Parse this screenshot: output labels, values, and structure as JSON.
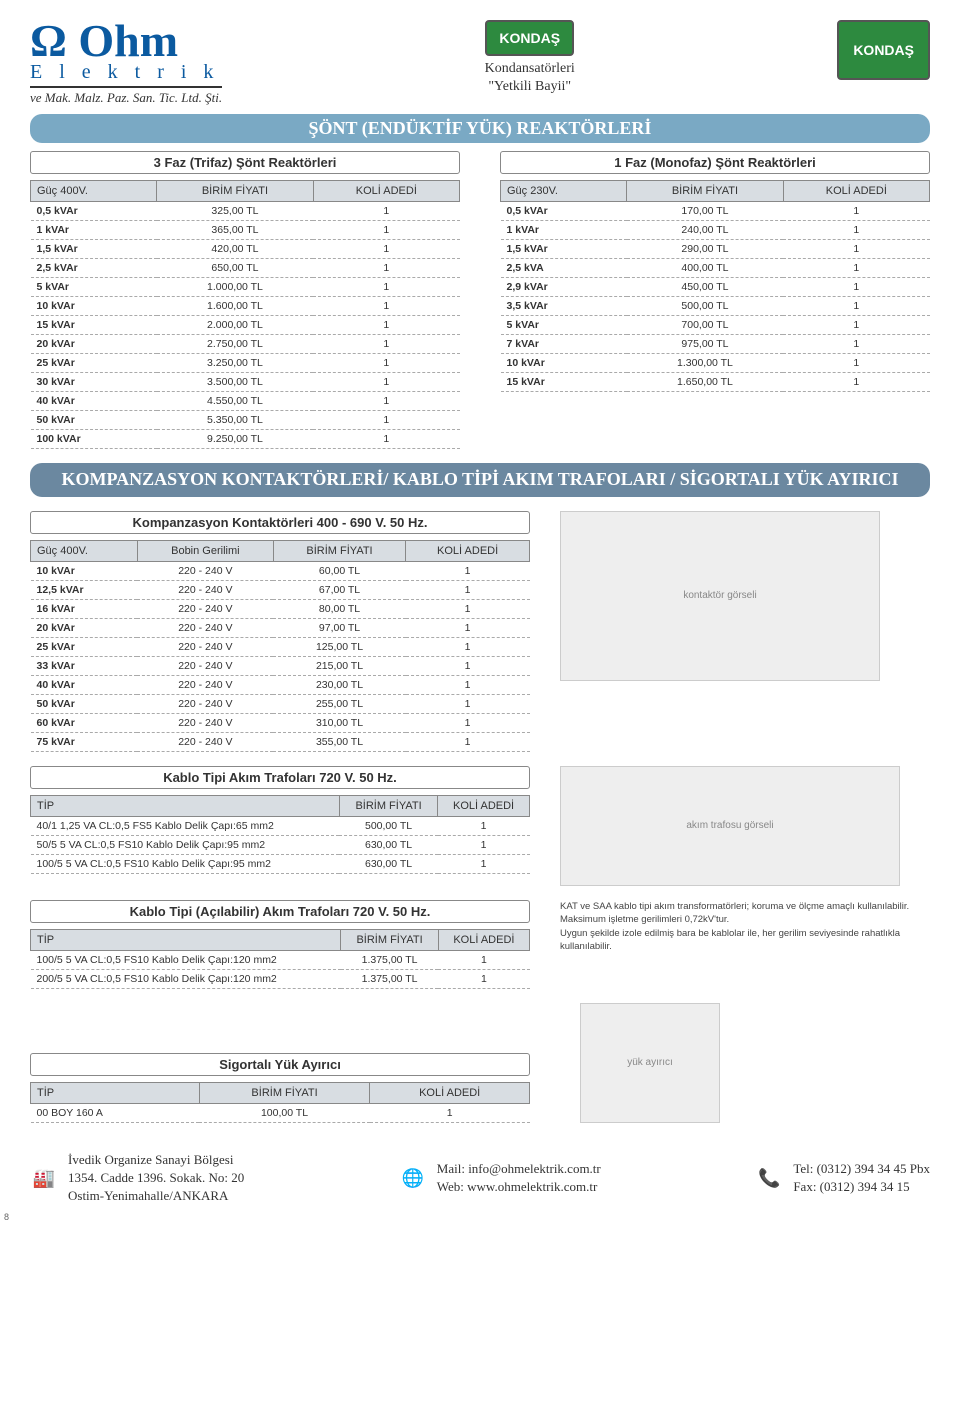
{
  "header": {
    "logo_text1": "Ω Ohm",
    "logo_text2": "E l e k t r i k",
    "logo_text3": "ve Mak. Malz. Paz. San. Tic. Ltd. Şti.",
    "kondas_badge": "KONDAŞ",
    "kondas_sub1": "Kondansatörleri",
    "kondas_sub2": "\"Yetkili Bayii\""
  },
  "banner1": "ŞÖNT (ENDÜKTİF YÜK) REAKTÖRLERİ",
  "banner2": "KOMPANZASYON KONTAKTÖRLERİ/ KABLO TİPİ AKIM TRAFOLARI / SİGORTALI YÜK AYIRICI",
  "table3f": {
    "title": "3 Faz (Trifaz) Şönt Reaktörleri",
    "head": [
      "Güç 400V.",
      "BİRİM FİYATI",
      "KOLİ ADEDİ"
    ],
    "rows": [
      [
        "0,5 kVAr",
        "325,00 TL",
        "1"
      ],
      [
        "1 kVAr",
        "365,00 TL",
        "1"
      ],
      [
        "1,5 kVAr",
        "420,00 TL",
        "1"
      ],
      [
        "2,5 kVAr",
        "650,00 TL",
        "1"
      ],
      [
        "5 kVAr",
        "1.000,00 TL",
        "1"
      ],
      [
        "10 kVAr",
        "1.600,00 TL",
        "1"
      ],
      [
        "15 kVAr",
        "2.000,00 TL",
        "1"
      ],
      [
        "20 kVAr",
        "2.750,00 TL",
        "1"
      ],
      [
        "25 kVAr",
        "3.250,00 TL",
        "1"
      ],
      [
        "30 kVAr",
        "3.500,00 TL",
        "1"
      ],
      [
        "40 kVAr",
        "4.550,00 TL",
        "1"
      ],
      [
        "50 kVAr",
        "5.350,00 TL",
        "1"
      ],
      [
        "100 kVAr",
        "9.250,00 TL",
        "1"
      ]
    ]
  },
  "table1f": {
    "title": "1 Faz (Monofaz) Şönt Reaktörleri",
    "head": [
      "Güç 230V.",
      "BİRİM FİYATI",
      "KOLİ ADEDİ"
    ],
    "rows": [
      [
        "0,5 kVAr",
        "170,00 TL",
        "1"
      ],
      [
        "1 kVAr",
        "240,00 TL",
        "1"
      ],
      [
        "1,5 kVAr",
        "290,00 TL",
        "1"
      ],
      [
        "2,5 kVA",
        "400,00 TL",
        "1"
      ],
      [
        "2,9 kVAr",
        "450,00 TL",
        "1"
      ],
      [
        "3,5 kVAr",
        "500,00 TL",
        "1"
      ],
      [
        "5 kVAr",
        "700,00 TL",
        "1"
      ],
      [
        "7 kVAr",
        "975,00 TL",
        "1"
      ],
      [
        "10 kVAr",
        "1.300,00 TL",
        "1"
      ],
      [
        "15 kVAr",
        "1.650,00 TL",
        "1"
      ]
    ]
  },
  "tableKontaktor": {
    "title": "Kompanzasyon Kontaktörleri 400 - 690 V. 50 Hz.",
    "head": [
      "Güç 400V.",
      "Bobin Gerilimi",
      "BİRİM FİYATI",
      "KOLİ ADEDİ"
    ],
    "rows": [
      [
        "10 kVAr",
        "220 - 240 V",
        "60,00 TL",
        "1"
      ],
      [
        "12,5 kVAr",
        "220 - 240 V",
        "67,00 TL",
        "1"
      ],
      [
        "16 kVAr",
        "220 - 240 V",
        "80,00 TL",
        "1"
      ],
      [
        "20 kVAr",
        "220 - 240 V",
        "97,00 TL",
        "1"
      ],
      [
        "25 kVAr",
        "220 - 240 V",
        "125,00 TL",
        "1"
      ],
      [
        "33 kVAr",
        "220 - 240 V",
        "215,00 TL",
        "1"
      ],
      [
        "40 kVAr",
        "220 - 240 V",
        "230,00 TL",
        "1"
      ],
      [
        "50 kVAr",
        "220 - 240 V",
        "255,00 TL",
        "1"
      ],
      [
        "60 kVAr",
        "220 - 240 V",
        "310,00 TL",
        "1"
      ],
      [
        "75 kVAr",
        "220 - 240 V",
        "355,00 TL",
        "1"
      ]
    ]
  },
  "tableKablo": {
    "title": "Kablo Tipi Akım Trafoları 720 V. 50 Hz.",
    "head": [
      "TİP",
      "BİRİM FİYATI",
      "KOLİ ADEDİ"
    ],
    "rows": [
      [
        "40/1  1,25 VA CL:0,5 FS5 Kablo Delik Çapı:65 mm2",
        "500,00 TL",
        "1"
      ],
      [
        "50/5  5 VA CL:0,5 FS10 Kablo Delik Çapı:95 mm2",
        "630,00 TL",
        "1"
      ],
      [
        "100/5  5 VA CL:0,5 FS10 Kablo Delik Çapı:95 mm2",
        "630,00 TL",
        "1"
      ]
    ]
  },
  "tableKabloAcil": {
    "title": "Kablo Tipi (Açılabilir) Akım Trafoları 720 V. 50 Hz.",
    "head": [
      "TİP",
      "BİRİM FİYATI",
      "KOLİ ADEDİ"
    ],
    "rows": [
      [
        "100/5  5 VA CL:0,5 FS10 Kablo Delik Çapı:120 mm2",
        "1.375,00 TL",
        "1"
      ],
      [
        "200/5  5 VA CL:0,5 FS10 Kablo Delik Çapı:120 mm2",
        "1.375,00 TL",
        "1"
      ]
    ]
  },
  "tableSigortali": {
    "title": "Sigortalı Yük Ayırıcı",
    "head": [
      "TİP",
      "BİRİM FİYATI",
      "KOLİ ADEDİ"
    ],
    "rows": [
      [
        "00 BOY 160 A",
        "100,00 TL",
        "1"
      ]
    ]
  },
  "note": {
    "l1": "KAT ve SAA kablo tipi akım transformatörleri; koruma ve ölçme amaçlı kullanılabilir.",
    "l2": "Maksimum işletme gerilimleri 0,72kV'tur.",
    "l3": "Uygun şekilde izole edilmiş bara be kablolar ile, her gerilim seviyesinde rahatlıkla kullanılabilir."
  },
  "footer": {
    "addr1": "İvedik Organize Sanayi Bölgesi",
    "addr2": "1354. Cadde 1396. Sokak. No: 20",
    "addr3": "Ostim-Yenimahalle/ANKARA",
    "mail": "Mail: info@ohmelektrik.com.tr",
    "web": "Web: www.ohmelektrik.com.tr",
    "tel": "Tel: (0312) 394 34 45 Pbx",
    "fax": "Fax: (0312) 394 34 15"
  },
  "page_num": "8",
  "colors": {
    "banner_bg": "#7aa9c4",
    "head_bg": "#d8dde2",
    "logo_color": "#0b5aa0",
    "kondas_green": "#2d8a3f"
  }
}
